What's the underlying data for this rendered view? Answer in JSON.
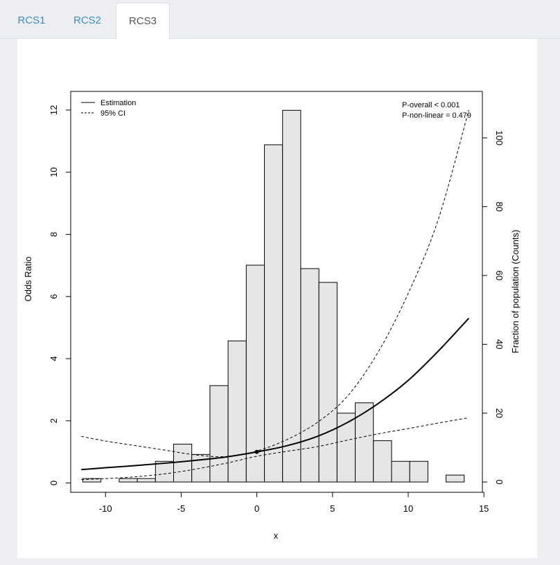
{
  "tabs": [
    {
      "label": "RCS1",
      "active": false
    },
    {
      "label": "RCS2",
      "active": false
    },
    {
      "label": "RCS3",
      "active": true
    }
  ],
  "chart_data": {
    "type": "histogram+line",
    "xlabel": "x",
    "ylabel": "Odds Ratio",
    "y2label": "Fraction of population (Counts)",
    "xlim": [
      -12.3,
      14.9
    ],
    "ylim": [
      -0.3,
      12.6
    ],
    "y2lim": [
      -3.0,
      113.5
    ],
    "xticks": [
      -10,
      -5,
      0,
      5,
      10,
      15
    ],
    "yticks": [
      0,
      2,
      4,
      6,
      8,
      10,
      12
    ],
    "y2ticks": [
      0,
      20,
      40,
      60,
      80,
      100
    ],
    "legend": {
      "position": "top-left",
      "items": [
        {
          "label": "Estimation",
          "style": "solid"
        },
        {
          "label": "95% CI",
          "style": "dashed"
        }
      ]
    },
    "annotations": [
      "P-overall < 0.001",
      "P-non-linear = 0.479"
    ],
    "histogram": {
      "bins": [
        {
          "x0": -11.5,
          "x1": -10.3,
          "count": 1
        },
        {
          "x0": -10.3,
          "x1": -9.1,
          "count": 0
        },
        {
          "x0": -9.1,
          "x1": -7.9,
          "count": 1
        },
        {
          "x0": -7.9,
          "x1": -6.7,
          "count": 1
        },
        {
          "x0": -6.7,
          "x1": -5.5,
          "count": 6
        },
        {
          "x0": -5.5,
          "x1": -4.3,
          "count": 11
        },
        {
          "x0": -4.3,
          "x1": -3.1,
          "count": 8
        },
        {
          "x0": -3.1,
          "x1": -1.9,
          "count": 28
        },
        {
          "x0": -1.9,
          "x1": -0.7,
          "count": 41
        },
        {
          "x0": -0.7,
          "x1": 0.5,
          "count": 63
        },
        {
          "x0": 0.5,
          "x1": 1.7,
          "count": 98
        },
        {
          "x0": 1.7,
          "x1": 2.9,
          "count": 108
        },
        {
          "x0": 2.9,
          "x1": 4.1,
          "count": 62
        },
        {
          "x0": 4.1,
          "x1": 5.3,
          "count": 58
        },
        {
          "x0": 5.3,
          "x1": 6.5,
          "count": 20
        },
        {
          "x0": 6.5,
          "x1": 7.7,
          "count": 23
        },
        {
          "x0": 7.7,
          "x1": 8.9,
          "count": 12
        },
        {
          "x0": 8.9,
          "x1": 10.1,
          "count": 6
        },
        {
          "x0": 10.1,
          "x1": 11.3,
          "count": 6
        },
        {
          "x0": 11.3,
          "x1": 12.5,
          "count": 0
        },
        {
          "x0": 12.5,
          "x1": 13.7,
          "count": 2
        }
      ]
    },
    "series": [
      {
        "name": "Estimation",
        "style": "solid",
        "x": [
          -11.6,
          -10,
          -8,
          -6,
          -4,
          -2,
          0,
          2,
          4,
          6,
          8,
          10,
          12,
          14
        ],
        "y": [
          0.43,
          0.49,
          0.56,
          0.64,
          0.73,
          0.84,
          1.0,
          1.2,
          1.5,
          1.95,
          2.55,
          3.3,
          4.25,
          5.3
        ]
      },
      {
        "name": "95% CI lower",
        "style": "dashed",
        "x": [
          -11.6,
          -10,
          -8,
          -6,
          -4,
          -2,
          0,
          2,
          4,
          6,
          8,
          10,
          12,
          14
        ],
        "y": [
          0.11,
          0.14,
          0.2,
          0.3,
          0.45,
          0.64,
          0.86,
          1.02,
          1.17,
          1.38,
          1.58,
          1.75,
          1.93,
          2.1
        ]
      },
      {
        "name": "95% CI upper",
        "style": "dashed",
        "x": [
          -11.6,
          -10,
          -8,
          -6,
          -4,
          -2,
          0,
          2,
          4,
          6,
          8,
          10,
          12,
          14
        ],
        "y": [
          1.5,
          1.35,
          1.2,
          1.05,
          0.9,
          0.85,
          1.03,
          1.4,
          1.95,
          2.8,
          4.2,
          6.1,
          8.5,
          12.0
        ]
      }
    ],
    "reference_point": {
      "x": 0,
      "y": 1.0
    }
  }
}
